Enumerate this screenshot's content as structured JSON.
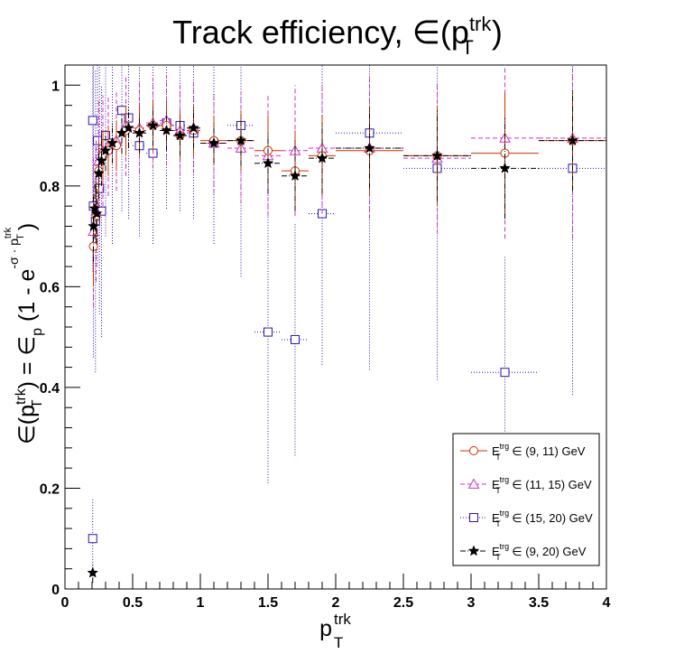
{
  "chart_data": {
    "type": "scatter",
    "title": "Track efficiency, ∈(p",
    "title_sup": "trk",
    "title_sub": "T",
    "title_close": ")",
    "xlabel": "p",
    "xlabel_sup": "trk",
    "xlabel_sub": "T",
    "ylabel": {
      "p1": "∈(p",
      "p1_sub": "T",
      "p1_sup": "trk",
      "p2": ") = ∈",
      "p2_sub": "p",
      "p3": " (1 - e",
      "exp": "-σ · p",
      "exp_sub": "T",
      "exp_sup": "trk",
      "p4": ")"
    },
    "xlim": [
      0,
      4
    ],
    "ylim": [
      0,
      1.04
    ],
    "x_ticks": [
      "0",
      "0.5",
      "1",
      "1.5",
      "2",
      "2.5",
      "3",
      "3.5",
      "4"
    ],
    "y_ticks": [
      "0",
      "0.2",
      "0.4",
      "0.6",
      "0.8",
      "1"
    ],
    "legend_position": "bottom-right",
    "series": [
      {
        "name": "(9, 11) GeV",
        "legend_main": "E",
        "legend_sup": "trg",
        "legend_sub": "T",
        "legend_rest": " ∈ (9, 11) GeV",
        "color": "#cc3300",
        "marker": "open-circle",
        "line_dash": "solid",
        "points": [
          {
            "x": 0.21,
            "y": 0.68,
            "xerr": 0.005,
            "yerr": 0.08
          },
          {
            "x": 0.23,
            "y": 0.74,
            "xerr": 0.01,
            "yerr": 0.07
          },
          {
            "x": 0.25,
            "y": 0.83,
            "xerr": 0.01,
            "yerr": 0.06
          },
          {
            "x": 0.28,
            "y": 0.86,
            "xerr": 0.015,
            "yerr": 0.05
          },
          {
            "x": 0.32,
            "y": 0.87,
            "xerr": 0.02,
            "yerr": 0.05
          },
          {
            "x": 0.38,
            "y": 0.88,
            "xerr": 0.025,
            "yerr": 0.05
          },
          {
            "x": 0.45,
            "y": 0.91,
            "xerr": 0.025,
            "yerr": 0.05
          },
          {
            "x": 0.55,
            "y": 0.91,
            "xerr": 0.05,
            "yerr": 0.05
          },
          {
            "x": 0.65,
            "y": 0.92,
            "xerr": 0.05,
            "yerr": 0.05
          },
          {
            "x": 0.75,
            "y": 0.92,
            "xerr": 0.05,
            "yerr": 0.05
          },
          {
            "x": 0.85,
            "y": 0.9,
            "xerr": 0.05,
            "yerr": 0.05
          },
          {
            "x": 0.95,
            "y": 0.91,
            "xerr": 0.05,
            "yerr": 0.05
          },
          {
            "x": 1.1,
            "y": 0.89,
            "xerr": 0.1,
            "yerr": 0.05
          },
          {
            "x": 1.3,
            "y": 0.89,
            "xerr": 0.1,
            "yerr": 0.06
          },
          {
            "x": 1.5,
            "y": 0.87,
            "xerr": 0.1,
            "yerr": 0.07
          },
          {
            "x": 1.7,
            "y": 0.83,
            "xerr": 0.1,
            "yerr": 0.08
          },
          {
            "x": 1.9,
            "y": 0.86,
            "xerr": 0.1,
            "yerr": 0.08
          },
          {
            "x": 2.25,
            "y": 0.87,
            "xerr": 0.25,
            "yerr": 0.09
          },
          {
            "x": 2.75,
            "y": 0.86,
            "xerr": 0.25,
            "yerr": 0.1
          },
          {
            "x": 3.25,
            "y": 0.865,
            "xerr": 0.25,
            "yerr": 0.12
          },
          {
            "x": 3.75,
            "y": 0.89,
            "xerr": 0.25,
            "yerr": 0.1
          }
        ]
      },
      {
        "name": "(11, 15) GeV",
        "legend_main": "E",
        "legend_sup": "trg",
        "legend_sub": "T",
        "legend_rest": " ∈ (11, 15) GeV",
        "color": "#cc33cc",
        "marker": "open-triangle",
        "line_dash": "5,3",
        "points": [
          {
            "x": 0.21,
            "y": 0.71,
            "xerr": 0.005,
            "yerr": 0.15
          },
          {
            "x": 0.23,
            "y": 0.75,
            "xerr": 0.01,
            "yerr": 0.14
          },
          {
            "x": 0.25,
            "y": 0.85,
            "xerr": 0.01,
            "yerr": 0.12
          },
          {
            "x": 0.28,
            "y": 0.87,
            "xerr": 0.015,
            "yerr": 0.11
          },
          {
            "x": 0.32,
            "y": 0.88,
            "xerr": 0.02,
            "yerr": 0.1
          },
          {
            "x": 0.38,
            "y": 0.89,
            "xerr": 0.025,
            "yerr": 0.1
          },
          {
            "x": 0.45,
            "y": 0.92,
            "xerr": 0.025,
            "yerr": 0.1
          },
          {
            "x": 0.55,
            "y": 0.915,
            "xerr": 0.05,
            "yerr": 0.09
          },
          {
            "x": 0.65,
            "y": 0.925,
            "xerr": 0.05,
            "yerr": 0.09
          },
          {
            "x": 0.75,
            "y": 0.93,
            "xerr": 0.05,
            "yerr": 0.09
          },
          {
            "x": 0.85,
            "y": 0.91,
            "xerr": 0.05,
            "yerr": 0.09
          },
          {
            "x": 0.95,
            "y": 0.915,
            "xerr": 0.05,
            "yerr": 0.09
          },
          {
            "x": 1.1,
            "y": 0.885,
            "xerr": 0.1,
            "yerr": 0.1
          },
          {
            "x": 1.3,
            "y": 0.875,
            "xerr": 0.1,
            "yerr": 0.11
          },
          {
            "x": 1.5,
            "y": 0.86,
            "xerr": 0.1,
            "yerr": 0.12
          },
          {
            "x": 1.7,
            "y": 0.87,
            "xerr": 0.1,
            "yerr": 0.13
          },
          {
            "x": 1.9,
            "y": 0.875,
            "xerr": 0.1,
            "yerr": 0.13
          },
          {
            "x": 2.25,
            "y": 0.875,
            "xerr": 0.25,
            "yerr": 0.14
          },
          {
            "x": 2.75,
            "y": 0.855,
            "xerr": 0.25,
            "yerr": 0.15
          },
          {
            "x": 3.25,
            "y": 0.895,
            "xerr": 0.25,
            "yerr": 0.2
          },
          {
            "x": 3.75,
            "y": 0.895,
            "xerr": 0.25,
            "yerr": 0.2
          }
        ]
      },
      {
        "name": "(15, 20) GeV",
        "legend_main": "E",
        "legend_sup": "trg",
        "legend_sub": "T",
        "legend_rest": " ∈ (15, 20) GeV",
        "color": "#3311aa",
        "marker": "open-square",
        "line_dash": "1,2",
        "points": [
          {
            "x": 0.205,
            "y": 0.1,
            "xerr": 0.005,
            "yerr": 0.08
          },
          {
            "x": 0.205,
            "y": 0.93,
            "xerr": 0.005,
            "yerr": 0.3
          },
          {
            "x": 0.21,
            "y": 0.76,
            "xerr": 0.005,
            "yerr": 0.3
          },
          {
            "x": 0.225,
            "y": 0.73,
            "xerr": 0.008,
            "yerr": 0.3
          },
          {
            "x": 0.24,
            "y": 0.89,
            "xerr": 0.008,
            "yerr": 0.25
          },
          {
            "x": 0.255,
            "y": 0.795,
            "xerr": 0.008,
            "yerr": 0.25
          },
          {
            "x": 0.27,
            "y": 0.75,
            "xerr": 0.01,
            "yerr": 0.25
          },
          {
            "x": 0.3,
            "y": 0.9,
            "xerr": 0.015,
            "yerr": 0.2
          },
          {
            "x": 0.35,
            "y": 0.885,
            "xerr": 0.02,
            "yerr": 0.2
          },
          {
            "x": 0.42,
            "y": 0.95,
            "xerr": 0.025,
            "yerr": 0.2
          },
          {
            "x": 0.47,
            "y": 0.935,
            "xerr": 0.025,
            "yerr": 0.2
          },
          {
            "x": 0.55,
            "y": 0.88,
            "xerr": 0.05,
            "yerr": 0.18
          },
          {
            "x": 0.65,
            "y": 0.865,
            "xerr": 0.05,
            "yerr": 0.18
          },
          {
            "x": 0.75,
            "y": 0.925,
            "xerr": 0.05,
            "yerr": 0.17
          },
          {
            "x": 0.85,
            "y": 0.92,
            "xerr": 0.05,
            "yerr": 0.17
          },
          {
            "x": 0.95,
            "y": 0.905,
            "xerr": 0.05,
            "yerr": 0.17
          },
          {
            "x": 1.1,
            "y": 0.885,
            "xerr": 0.1,
            "yerr": 0.2
          },
          {
            "x": 1.3,
            "y": 0.92,
            "xerr": 0.1,
            "yerr": 0.3
          },
          {
            "x": 1.5,
            "y": 0.51,
            "xerr": 0.1,
            "yerr": 0.3
          },
          {
            "x": 1.7,
            "y": 0.495,
            "xerr": 0.1,
            "yerr": 0.23
          },
          {
            "x": 1.9,
            "y": 0.745,
            "xerr": 0.1,
            "yerr": 0.3
          },
          {
            "x": 2.25,
            "y": 0.905,
            "xerr": 0.25,
            "yerr": 0.47
          },
          {
            "x": 2.75,
            "y": 0.835,
            "xerr": 0.25,
            "yerr": 0.42
          },
          {
            "x": 3.25,
            "y": 0.43,
            "xerr": 0.25,
            "yerr": 0.23
          },
          {
            "x": 3.75,
            "y": 0.835,
            "xerr": 0.25,
            "yerr": 0.45
          }
        ]
      },
      {
        "name": "(9, 20) GeV",
        "legend_main": "E",
        "legend_sup": "trg",
        "legend_sub": "T",
        "legend_rest": " ∈ (9, 20) GeV",
        "color": "#000000",
        "marker": "star",
        "line_dash": "6,2,1,2",
        "points": [
          {
            "x": 0.205,
            "y": 0.032,
            "xerr": 0.005,
            "yerr": 0.02
          },
          {
            "x": 0.21,
            "y": 0.72,
            "xerr": 0.005,
            "yerr": 0.07
          },
          {
            "x": 0.22,
            "y": 0.755,
            "xerr": 0.008,
            "yerr": 0.06
          },
          {
            "x": 0.235,
            "y": 0.745,
            "xerr": 0.008,
            "yerr": 0.06
          },
          {
            "x": 0.25,
            "y": 0.825,
            "xerr": 0.008,
            "yerr": 0.05
          },
          {
            "x": 0.27,
            "y": 0.85,
            "xerr": 0.01,
            "yerr": 0.05
          },
          {
            "x": 0.3,
            "y": 0.87,
            "xerr": 0.015,
            "yerr": 0.04
          },
          {
            "x": 0.35,
            "y": 0.885,
            "xerr": 0.02,
            "yerr": 0.04
          },
          {
            "x": 0.42,
            "y": 0.905,
            "xerr": 0.025,
            "yerr": 0.04
          },
          {
            "x": 0.47,
            "y": 0.915,
            "xerr": 0.025,
            "yerr": 0.04
          },
          {
            "x": 0.55,
            "y": 0.905,
            "xerr": 0.05,
            "yerr": 0.04
          },
          {
            "x": 0.65,
            "y": 0.92,
            "xerr": 0.05,
            "yerr": 0.04
          },
          {
            "x": 0.75,
            "y": 0.91,
            "xerr": 0.05,
            "yerr": 0.04
          },
          {
            "x": 0.85,
            "y": 0.9,
            "xerr": 0.05,
            "yerr": 0.04
          },
          {
            "x": 0.95,
            "y": 0.915,
            "xerr": 0.05,
            "yerr": 0.04
          },
          {
            "x": 1.1,
            "y": 0.885,
            "xerr": 0.1,
            "yerr": 0.04
          },
          {
            "x": 1.3,
            "y": 0.89,
            "xerr": 0.1,
            "yerr": 0.05
          },
          {
            "x": 1.5,
            "y": 0.845,
            "xerr": 0.1,
            "yerr": 0.06
          },
          {
            "x": 1.7,
            "y": 0.82,
            "xerr": 0.1,
            "yerr": 0.07
          },
          {
            "x": 1.9,
            "y": 0.855,
            "xerr": 0.1,
            "yerr": 0.07
          },
          {
            "x": 2.25,
            "y": 0.875,
            "xerr": 0.25,
            "yerr": 0.08
          },
          {
            "x": 2.75,
            "y": 0.86,
            "xerr": 0.25,
            "yerr": 0.09
          },
          {
            "x": 3.25,
            "y": 0.835,
            "xerr": 0.25,
            "yerr": 0.1
          },
          {
            "x": 3.75,
            "y": 0.89,
            "xerr": 0.25,
            "yerr": 0.1
          }
        ]
      }
    ]
  }
}
